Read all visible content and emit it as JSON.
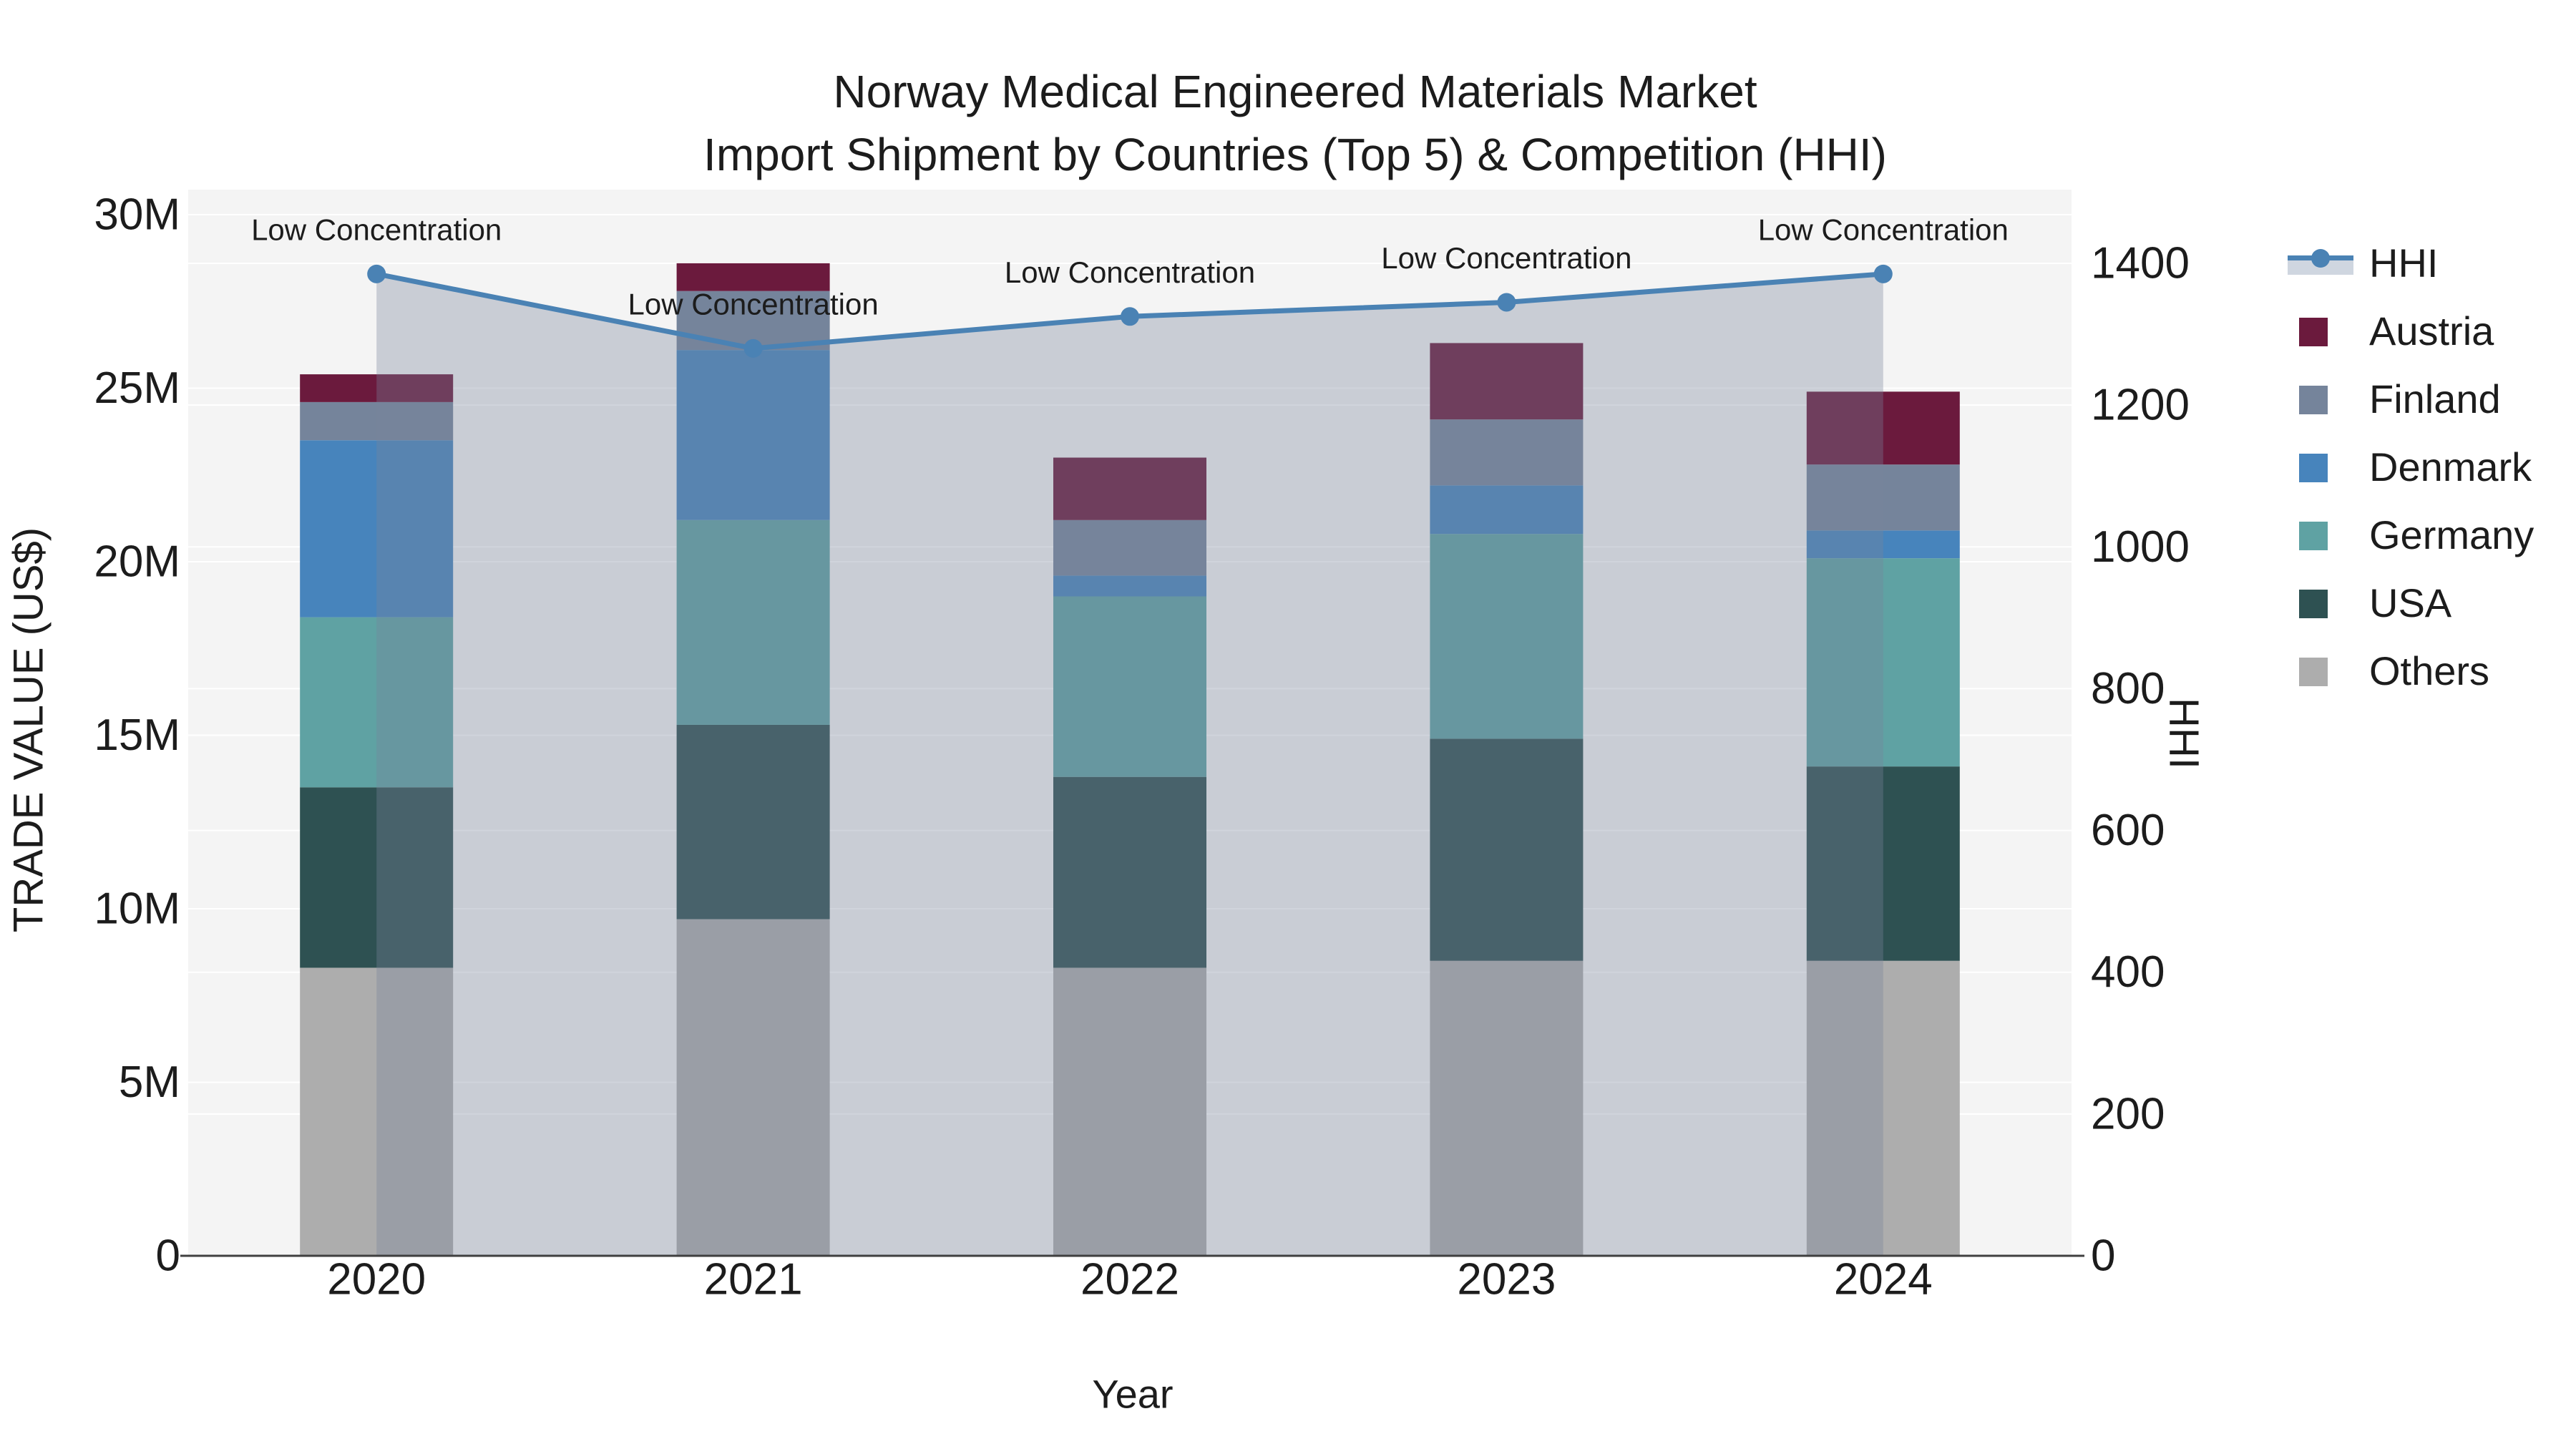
{
  "figure": {
    "title_line1": "Norway Medical Engineered Materials Market",
    "title_line2": "Import Shipment by Countries (Top 5) & Competition (HHI)"
  },
  "axes": {
    "x_title": "Year",
    "y_left_title": "TRADE VALUE (US$)",
    "y_right_title": "HHI",
    "x_ticks": [
      "2020",
      "2021",
      "2022",
      "2023",
      "2024"
    ],
    "y_left_ticks": [
      "0",
      "5M",
      "10M",
      "15M",
      "20M",
      "25M",
      "30M"
    ],
    "y_left_tick_values": [
      0,
      5,
      10,
      15,
      20,
      25,
      30
    ],
    "y_right_ticks": [
      "0",
      "200",
      "400",
      "600",
      "800",
      "1000",
      "1200",
      "1400"
    ],
    "y_right_tick_values": [
      0,
      200,
      400,
      600,
      800,
      1000,
      1200,
      1400
    ]
  },
  "legend": {
    "items": [
      {
        "label": "HHI",
        "type": "line",
        "color": "#4a82b4"
      },
      {
        "label": "Austria",
        "type": "swatch",
        "color": "#6b1a3d"
      },
      {
        "label": "Finland",
        "type": "swatch",
        "color": "#75849b"
      },
      {
        "label": "Denmark",
        "type": "swatch",
        "color": "#4784bc"
      },
      {
        "label": "Germany",
        "type": "swatch",
        "color": "#5fa2a3"
      },
      {
        "label": "USA",
        "type": "swatch",
        "color": "#2e5152"
      },
      {
        "label": "Others",
        "type": "swatch",
        "color": "#adadad"
      }
    ]
  },
  "chart_data": {
    "type": "bar+line",
    "title": "Norway Medical Engineered Materials Market — Import Shipment by Countries (Top 5) & Competition (HHI)",
    "categories": [
      "2020",
      "2021",
      "2022",
      "2023",
      "2024"
    ],
    "xlabel": "Year",
    "ylabel_left": "TRADE VALUE (US$)",
    "ylabel_right": "HHI",
    "ylim_left_millions": [
      0,
      30
    ],
    "ylim_right": [
      0,
      1400
    ],
    "grid": true,
    "legend_position": "right",
    "bar_unit": "million US$",
    "stack_order_bottom_to_top": [
      "Others",
      "USA",
      "Germany",
      "Denmark",
      "Finland",
      "Austria"
    ],
    "series": [
      {
        "name": "Others",
        "color": "#adadad",
        "values": [
          8.3,
          9.7,
          8.3,
          8.5,
          8.5
        ]
      },
      {
        "name": "USA",
        "color": "#2e5152",
        "values": [
          5.2,
          5.6,
          5.5,
          6.4,
          5.6
        ]
      },
      {
        "name": "Germany",
        "color": "#5fa2a3",
        "values": [
          4.9,
          5.9,
          5.2,
          5.9,
          6.0
        ]
      },
      {
        "name": "Denmark",
        "color": "#4784bc",
        "values": [
          5.1,
          4.9,
          0.6,
          1.4,
          0.8
        ]
      },
      {
        "name": "Finland",
        "color": "#75849b",
        "values": [
          1.1,
          1.7,
          1.6,
          1.9,
          1.9
        ]
      },
      {
        "name": "Austria",
        "color": "#6b1a3d",
        "values": [
          0.8,
          0.8,
          1.8,
          2.2,
          2.1
        ]
      }
    ],
    "bar_totals_millions": [
      25.4,
      28.6,
      23.0,
      26.3,
      24.9
    ],
    "line": {
      "name": "HHI",
      "color": "#4a82b4",
      "area_fill": "rgba(120,131,155,0.35)",
      "values": [
        1385,
        1280,
        1325,
        1345,
        1385
      ],
      "annotations": [
        "Low Concentration",
        "Low Concentration",
        "Low Concentration",
        "Low Concentration",
        "Low Concentration"
      ]
    }
  },
  "colors": {
    "plot_background": "#f4f4f4",
    "gridline": "#ffffff",
    "axis_line": "#3f3f3f",
    "text": "#1c1c1c"
  }
}
